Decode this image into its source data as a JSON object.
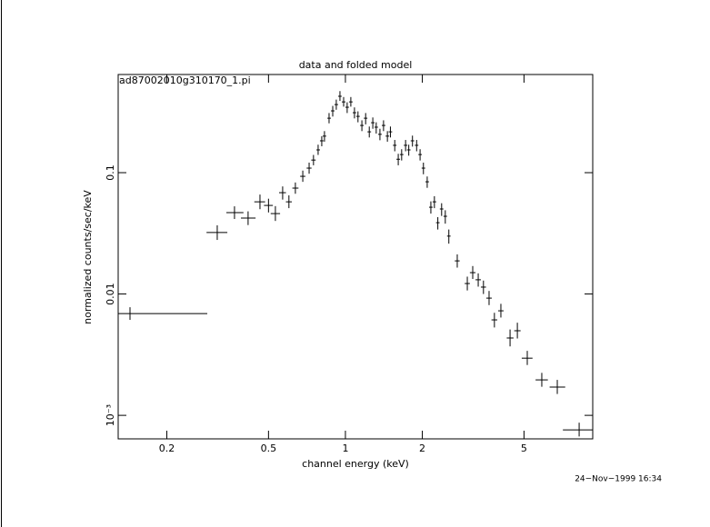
{
  "chart_data": {
    "type": "scatter",
    "title": "data and folded model",
    "subtitle": "ad87002010g310170_1.pi",
    "xlabel": "channel energy (keV)",
    "ylabel": "normalized counts/sec/keV",
    "annotation": "24−Nov−1999 16:34",
    "xscale": "log",
    "yscale": "log",
    "color": "#000000",
    "xlim": [
      0.129,
      9.29
    ],
    "ylim": [
      0.00064,
      0.644
    ],
    "xticks": [
      0.2,
      0.5,
      1,
      2,
      5
    ],
    "yticks": [
      {
        "value": 0.001,
        "label": "10⁻³"
      },
      0.01,
      0.1
    ],
    "x": [
      0.1435,
      0.315,
      0.368,
      0.416,
      0.463,
      0.5,
      0.532,
      0.568,
      0.601,
      0.637,
      0.681,
      0.721,
      0.75,
      0.782,
      0.808,
      0.828,
      0.863,
      0.892,
      0.921,
      0.952,
      0.984,
      1.016,
      1.05,
      1.085,
      1.12,
      1.16,
      1.2,
      1.24,
      1.28,
      1.32,
      1.365,
      1.41,
      1.46,
      1.5,
      1.56,
      1.61,
      1.66,
      1.72,
      1.77,
      1.83,
      1.9,
      1.96,
      2.02,
      2.09,
      2.16,
      2.23,
      2.3,
      2.38,
      2.46,
      2.54,
      2.74,
      3.0,
      3.15,
      3.31,
      3.47,
      3.65,
      3.83,
      4.06,
      4.41,
      4.71,
      5.15,
      5.87,
      6.75,
      8.22
    ],
    "xlo": [
      0.129,
      0.286,
      0.342,
      0.39,
      0.44,
      0.48,
      0.51,
      0.55,
      0.585,
      0.62,
      0.665,
      0.705,
      0.735,
      0.77,
      0.795,
      0.815,
      0.85,
      0.878,
      0.906,
      0.937,
      0.968,
      1.0,
      1.033,
      1.068,
      1.102,
      1.142,
      1.181,
      1.22,
      1.26,
      1.3,
      1.343,
      1.388,
      1.437,
      1.476,
      1.535,
      1.584,
      1.634,
      1.693,
      1.742,
      1.801,
      1.87,
      1.93,
      1.988,
      2.057,
      2.126,
      2.194,
      2.263,
      2.342,
      2.421,
      2.5,
      2.68,
      2.93,
      3.07,
      3.23,
      3.39,
      3.56,
      3.73,
      3.96,
      4.28,
      4.58,
      4.9,
      5.55,
      6.3,
      7.1
    ],
    "xhi": [
      0.288,
      0.345,
      0.399,
      0.445,
      0.485,
      0.52,
      0.555,
      0.585,
      0.617,
      0.655,
      0.697,
      0.737,
      0.765,
      0.795,
      0.821,
      0.841,
      0.877,
      0.906,
      0.936,
      0.967,
      1.0,
      1.032,
      1.067,
      1.102,
      1.138,
      1.179,
      1.219,
      1.26,
      1.3,
      1.341,
      1.387,
      1.433,
      1.483,
      1.524,
      1.585,
      1.636,
      1.687,
      1.748,
      1.798,
      1.859,
      1.93,
      1.991,
      2.052,
      2.123,
      2.195,
      2.266,
      2.337,
      2.418,
      2.499,
      2.58,
      2.8,
      3.07,
      3.23,
      3.39,
      3.55,
      3.74,
      3.93,
      4.16,
      4.55,
      4.85,
      5.4,
      6.2,
      7.25,
      9.29
    ],
    "values": [
      0.0069,
      0.0321,
      0.0468,
      0.0422,
      0.0575,
      0.0537,
      0.046,
      0.0684,
      0.0575,
      0.0746,
      0.0933,
      0.109,
      0.127,
      0.154,
      0.183,
      0.2,
      0.281,
      0.323,
      0.364,
      0.426,
      0.383,
      0.346,
      0.383,
      0.312,
      0.291,
      0.245,
      0.281,
      0.217,
      0.258,
      0.237,
      0.207,
      0.245,
      0.2,
      0.217,
      0.168,
      0.129,
      0.141,
      0.168,
      0.154,
      0.183,
      0.168,
      0.141,
      0.109,
      0.0841,
      0.0519,
      0.0575,
      0.0387,
      0.0502,
      0.0437,
      0.03,
      0.01875,
      0.0122,
      0.015,
      0.0131,
      0.0114,
      0.00925,
      0.00612,
      0.00727,
      0.00434,
      0.00498,
      0.00296,
      0.00196,
      0.00171,
      0.000758
    ],
    "ylo": [
      0.00612,
      0.0279,
      0.0415,
      0.037,
      0.05,
      0.047,
      0.04,
      0.06,
      0.051,
      0.067,
      0.084,
      0.098,
      0.115,
      0.14,
      0.165,
      0.18,
      0.255,
      0.29,
      0.33,
      0.39,
      0.35,
      0.31,
      0.35,
      0.28,
      0.26,
      0.22,
      0.25,
      0.195,
      0.23,
      0.21,
      0.185,
      0.22,
      0.18,
      0.195,
      0.15,
      0.115,
      0.126,
      0.15,
      0.138,
      0.164,
      0.15,
      0.126,
      0.097,
      0.075,
      0.046,
      0.051,
      0.034,
      0.044,
      0.038,
      0.026,
      0.0165,
      0.0107,
      0.0133,
      0.0115,
      0.01,
      0.0081,
      0.0053,
      0.0064,
      0.0037,
      0.0043,
      0.0026,
      0.00172,
      0.0015,
      0.00067
    ],
    "yhi": [
      0.00778,
      0.0368,
      0.0528,
      0.048,
      0.066,
      0.061,
      0.053,
      0.077,
      0.065,
      0.083,
      0.104,
      0.121,
      0.14,
      0.17,
      0.2,
      0.22,
      0.31,
      0.355,
      0.4,
      0.47,
      0.42,
      0.38,
      0.42,
      0.345,
      0.32,
      0.27,
      0.31,
      0.24,
      0.285,
      0.26,
      0.23,
      0.27,
      0.22,
      0.24,
      0.186,
      0.143,
      0.156,
      0.186,
      0.17,
      0.202,
      0.186,
      0.156,
      0.121,
      0.093,
      0.058,
      0.064,
      0.043,
      0.056,
      0.049,
      0.034,
      0.0212,
      0.0139,
      0.017,
      0.0148,
      0.0129,
      0.0106,
      0.007,
      0.0083,
      0.0051,
      0.0058,
      0.0034,
      0.00224,
      0.00196,
      0.00087
    ]
  }
}
